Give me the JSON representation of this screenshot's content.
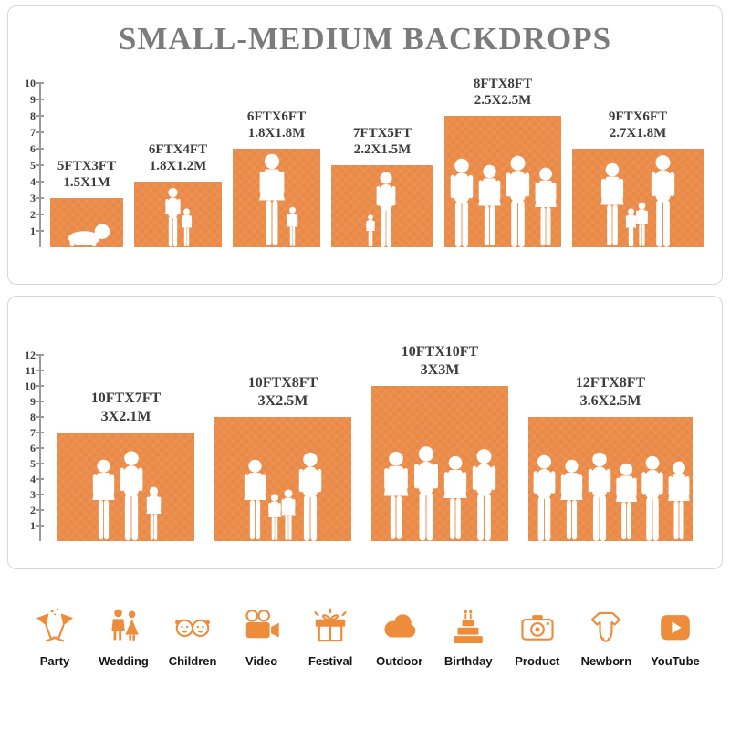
{
  "title": "SMALL-MEDIUM BACKDROPS",
  "colors": {
    "backdrop": "#EA8A47",
    "icon": "#ED8C3B",
    "title": "#7B7B7B",
    "label": "#3C3C3C"
  },
  "panels": [
    {
      "name": "small-medium",
      "ruler_max": 10,
      "ruler_ticks": [
        1,
        2,
        3,
        4,
        5,
        6,
        7,
        8,
        9,
        10
      ],
      "items": [
        {
          "size_ft": "5FTX3FT",
          "size_m": "1.5X1M",
          "w_ft": 5,
          "h_ft": 3,
          "figures": [
            {
              "type": "baby",
              "h": 0.52
            }
          ]
        },
        {
          "size_ft": "6FTX4FT",
          "size_m": "1.8X1.2M",
          "w_ft": 6,
          "h_ft": 4,
          "figures": [
            {
              "type": "man",
              "h": 0.92
            },
            {
              "type": "girl",
              "h": 0.6
            }
          ]
        },
        {
          "size_ft": "6FTX6FT",
          "size_m": "1.8X1.8M",
          "w_ft": 6,
          "h_ft": 6,
          "figures": [
            {
              "type": "woman",
              "h": 0.95
            },
            {
              "type": "girl",
              "h": 0.42
            }
          ]
        },
        {
          "size_ft": "7FTX5FT",
          "size_m": "2.2X1.5M",
          "w_ft": 7,
          "h_ft": 5,
          "figures": [
            {
              "type": "girl",
              "h": 0.4
            },
            {
              "type": "man",
              "h": 0.92
            }
          ]
        },
        {
          "size_ft": "8FTX8FT",
          "size_m": "2.5X2.5M",
          "w_ft": 8,
          "h_ft": 8,
          "figures": [
            {
              "type": "man",
              "h": 0.68
            },
            {
              "type": "woman",
              "h": 0.63
            },
            {
              "type": "man",
              "h": 0.7
            },
            {
              "type": "woman",
              "h": 0.61
            }
          ]
        },
        {
          "size_ft": "9FTX6FT",
          "size_m": "2.7X1.8M",
          "w_ft": 9,
          "h_ft": 6,
          "figures": [
            {
              "type": "woman",
              "h": 0.86
            },
            {
              "type": "girl",
              "h": 0.4
            },
            {
              "type": "girl",
              "h": 0.46
            },
            {
              "type": "man",
              "h": 0.94
            }
          ]
        }
      ]
    },
    {
      "name": "large",
      "ruler_max": 12,
      "ruler_ticks": [
        1,
        2,
        3,
        4,
        5,
        6,
        7,
        8,
        9,
        10,
        11,
        12
      ],
      "items": [
        {
          "size_ft": "10FTX7FT",
          "size_m": "3X2.1M",
          "w_ft": 10,
          "h_ft": 7,
          "figures": [
            {
              "type": "woman",
              "h": 0.76
            },
            {
              "type": "man",
              "h": 0.84
            },
            {
              "type": "girl",
              "h": 0.5
            }
          ]
        },
        {
          "size_ft": "10FTX8FT",
          "size_m": "3X2.5M",
          "w_ft": 10,
          "h_ft": 8,
          "figures": [
            {
              "type": "woman",
              "h": 0.66
            },
            {
              "type": "girl",
              "h": 0.38
            },
            {
              "type": "girl",
              "h": 0.42
            },
            {
              "type": "man",
              "h": 0.72
            }
          ]
        },
        {
          "size_ft": "10FTX10FT",
          "size_m": "3X3M",
          "w_ft": 10,
          "h_ft": 10,
          "figures": [
            {
              "type": "woman",
              "h": 0.58
            },
            {
              "type": "man",
              "h": 0.62
            },
            {
              "type": "woman",
              "h": 0.55
            },
            {
              "type": "man",
              "h": 0.6
            }
          ]
        },
        {
          "size_ft": "12FTX8FT",
          "size_m": "3.6X2.5M",
          "w_ft": 12,
          "h_ft": 8,
          "figures": [
            {
              "type": "man",
              "h": 0.7
            },
            {
              "type": "woman",
              "h": 0.66
            },
            {
              "type": "man",
              "h": 0.72
            },
            {
              "type": "woman",
              "h": 0.63
            },
            {
              "type": "man",
              "h": 0.69
            },
            {
              "type": "woman",
              "h": 0.65
            }
          ]
        }
      ]
    }
  ],
  "categories": [
    {
      "icon": "party-icon",
      "label": "Party"
    },
    {
      "icon": "wedding-icon",
      "label": "Wedding"
    },
    {
      "icon": "children-icon",
      "label": "Children"
    },
    {
      "icon": "video-icon",
      "label": "Video"
    },
    {
      "icon": "festival-icon",
      "label": "Festival"
    },
    {
      "icon": "outdoor-icon",
      "label": "Outdoor"
    },
    {
      "icon": "birthday-icon",
      "label": "Birthday"
    },
    {
      "icon": "product-icon",
      "label": "Product"
    },
    {
      "icon": "newborn-icon",
      "label": "Newborn"
    },
    {
      "icon": "youtube-icon",
      "label": "YouTube"
    }
  ]
}
